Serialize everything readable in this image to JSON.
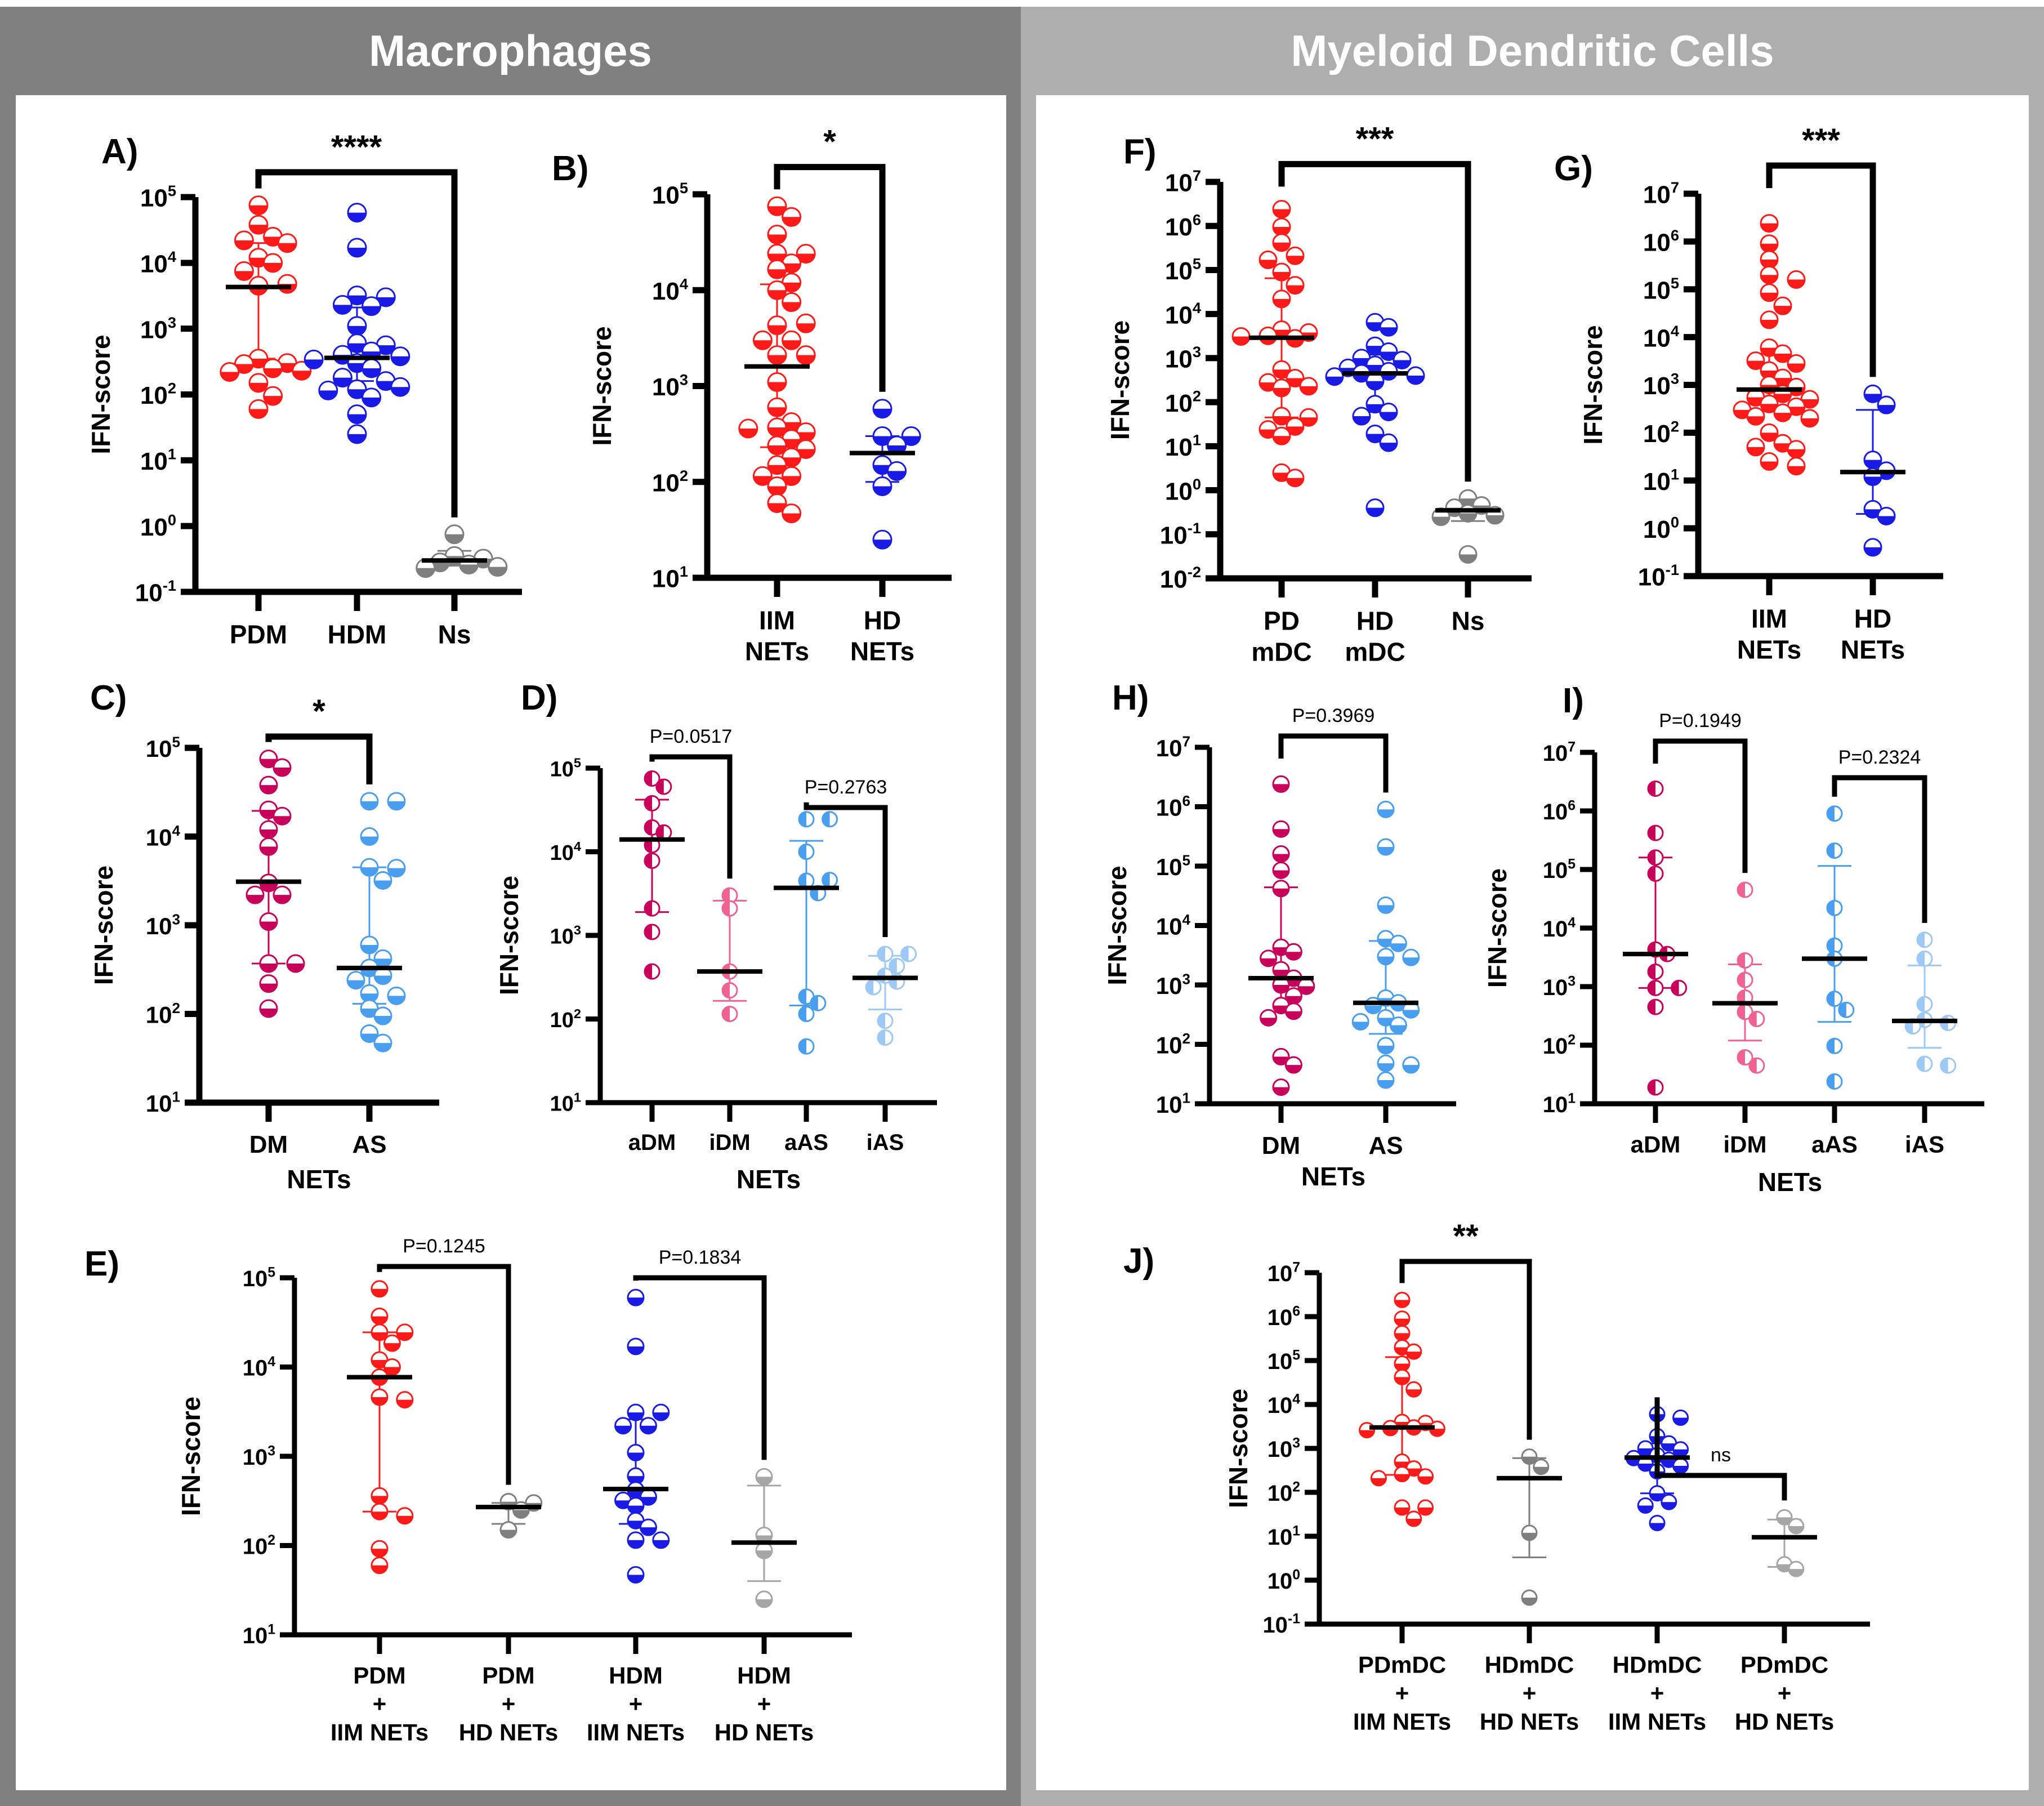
{
  "sections": {
    "left_title": "Macrophages",
    "right_title": "Myeloid Dendritic Cells"
  },
  "colors": {
    "red": "#ff1a1a",
    "blue": "#1a1ae6",
    "gray": "#7f7f7f",
    "lightgray": "#a6a6a6",
    "magenta": "#c8005a",
    "pink": "#f06292",
    "skyblue": "#4a9ef0",
    "paleblue": "#9ec8f5"
  },
  "chart_data": [
    {
      "id": "A",
      "type": "scatter",
      "panel_label": "A)",
      "ylabel": "IFN-score",
      "xlabel": "",
      "yscale": "log",
      "ylim_exp": [
        -1,
        5
      ],
      "categories": [
        "PDM",
        "HDM",
        "Ns"
      ],
      "series": [
        {
          "name": "PDM",
          "color": "red",
          "fill": "bottom",
          "median": 4300,
          "err": [
            350,
            20000
          ],
          "values": [
            75000,
            38000,
            25000,
            22000,
            20000,
            12000,
            10000,
            7500,
            4500,
            4800,
            350,
            300,
            290,
            250,
            220,
            230,
            150,
            95,
            60
          ]
        },
        {
          "name": "HDM",
          "color": "blue",
          "fill": "bottom",
          "median": 360,
          "err": [
            160,
            2100
          ],
          "values": [
            58000,
            17000,
            3200,
            3000,
            2200,
            2300,
            1100,
            600,
            560,
            450,
            400,
            380,
            340,
            300,
            250,
            180,
            160,
            120,
            115,
            130,
            90,
            50,
            25
          ]
        },
        {
          "name": "Ns",
          "color": "gray",
          "fill": "bottom",
          "median": 0.3,
          "err": [
            0.25,
            0.42
          ],
          "values": [
            0.75,
            0.35,
            0.32,
            0.28,
            0.26,
            0.24,
            0.23
          ]
        }
      ],
      "comparisons": [
        {
          "from": 0,
          "to": 2,
          "label": "****"
        }
      ]
    },
    {
      "id": "B",
      "type": "scatter",
      "panel_label": "B)",
      "ylabel": "IFN-score",
      "xlabel": "",
      "yscale": "log",
      "ylim_exp": [
        1,
        5
      ],
      "categories": [
        "IIM|NETs",
        "HD|NETs"
      ],
      "series": [
        {
          "name": "IIM NETs",
          "color": "red",
          "fill": "bottom",
          "median": 1600,
          "err": [
            230,
            11500
          ],
          "values": [
            75000,
            58000,
            38000,
            24000,
            24000,
            19000,
            16500,
            12000,
            10000,
            7500,
            4300,
            4500,
            3000,
            3000,
            2100,
            2100,
            1100,
            600,
            420,
            370,
            330,
            360,
            280,
            240,
            220,
            180,
            150,
            115,
            115,
            90,
            60,
            47
          ]
        },
        {
          "name": "HD NETs",
          "color": "blue",
          "fill": "bottom",
          "median": 200,
          "err": [
            100,
            300
          ],
          "values": [
            580,
            300,
            300,
            240,
            150,
            130,
            90,
            25
          ]
        }
      ],
      "comparisons": [
        {
          "from": 0,
          "to": 1,
          "label": "*"
        }
      ]
    },
    {
      "id": "C",
      "type": "scatter",
      "panel_label": "C)",
      "ylabel": "IFN-score",
      "xlabel": "NETs",
      "yscale": "log",
      "ylim_exp": [
        1,
        5
      ],
      "categories": [
        "DM",
        "AS"
      ],
      "series": [
        {
          "name": "DM",
          "color": "magenta",
          "fill": "bottom",
          "median": 3100,
          "err": [
            370,
            19500
          ],
          "values": [
            75000,
            60000,
            38000,
            20000,
            17000,
            12000,
            7700,
            3000,
            2200,
            2200,
            1100,
            370,
            370,
            220,
            115
          ]
        },
        {
          "name": "AS",
          "color": "skyblue",
          "fill": "bottom",
          "median": 330,
          "err": [
            130,
            4500
          ],
          "values": [
            25000,
            25000,
            10000,
            4500,
            4400,
            3200,
            600,
            420,
            330,
            270,
            240,
            170,
            160,
            115,
            95,
            60,
            47
          ]
        }
      ],
      "comparisons": [
        {
          "from": 0,
          "to": 1,
          "label": "*"
        }
      ]
    },
    {
      "id": "D",
      "type": "scatter",
      "panel_label": "D)",
      "ylabel": "IFN-score",
      "xlabel": "NETs",
      "yscale": "log",
      "ylim_exp": [
        1,
        5
      ],
      "categories": [
        "aDM",
        "iDM",
        "aAS",
        "iAS"
      ],
      "series": [
        {
          "name": "aDM",
          "color": "magenta",
          "fill": "left",
          "median": 14000,
          "err": [
            1900,
            42000
          ],
          "values": [
            75000,
            60000,
            38000,
            19500,
            17000,
            12000,
            7800,
            2100,
            1100,
            370
          ]
        },
        {
          "name": "iDM",
          "color": "pink",
          "fill": "left",
          "median": 370,
          "err": [
            165,
            2600
          ],
          "values": [
            3000,
            2100,
            370,
            220,
            115
          ]
        },
        {
          "name": "aAS",
          "color": "skyblue",
          "fill": "left",
          "median": 3700,
          "err": [
            145,
            13500
          ],
          "values": [
            24500,
            24500,
            10000,
            4500,
            4600,
            3200,
            185,
            155,
            115,
            47
          ]
        },
        {
          "name": "iAS",
          "color": "paleblue",
          "fill": "left",
          "median": 310,
          "err": [
            130,
            570
          ],
          "values": [
            600,
            600,
            430,
            330,
            280,
            240,
            95,
            60
          ]
        }
      ],
      "comparisons": [
        {
          "from": 0,
          "to": 1,
          "label": "P=0.0517"
        },
        {
          "from": 2,
          "to": 3,
          "label": "P=0.2763"
        }
      ]
    },
    {
      "id": "E",
      "type": "scatter",
      "panel_label": "E)",
      "ylabel": "IFN-score",
      "xlabel": "",
      "yscale": "log",
      "ylim_exp": [
        1,
        5
      ],
      "categories": [
        "PDM|+|IIM NETs",
        "PDM|+|HD NETs",
        "HDM|+|IIM NETs",
        "HDM|+|HD NETs"
      ],
      "series": [
        {
          "name": "PDM + IIM NETs",
          "color": "red",
          "fill": "bottom",
          "median": 7700,
          "err": [
            240,
            24500
          ],
          "values": [
            75000,
            37000,
            24500,
            24500,
            18500,
            12000,
            10000,
            7700,
            4600,
            4300,
            360,
            240,
            215,
            92,
            60
          ]
        },
        {
          "name": "PDM + HD NETs",
          "color": "gray",
          "fill": "bottom",
          "median": 270,
          "err": [
            175,
            300
          ],
          "values": [
            310,
            300,
            250,
            150
          ]
        },
        {
          "name": "HDM + IIM NETs",
          "color": "blue",
          "fill": "bottom",
          "median": 430,
          "err": [
            175,
            2600
          ],
          "values": [
            60000,
            17000,
            3100,
            3100,
            2200,
            2200,
            1100,
            600,
            420,
            350,
            320,
            280,
            190,
            160,
            115,
            115,
            47
          ]
        },
        {
          "name": "HDM + HD NETs",
          "color": "lightgray",
          "fill": "bottom",
          "median": 108,
          "err": [
            40,
            470
          ],
          "values": [
            590,
            130,
            88,
            25
          ]
        }
      ],
      "comparisons": [
        {
          "from": 0,
          "to": 1,
          "label": "P=0.1245"
        },
        {
          "from": 2,
          "to": 3,
          "label": "P=0.1834"
        }
      ]
    },
    {
      "id": "F",
      "type": "scatter",
      "panel_label": "F)",
      "ylabel": "IFN-score",
      "xlabel": "",
      "yscale": "log",
      "ylim_exp": [
        -2,
        7
      ],
      "categories": [
        "PD|mDC",
        "HD|mDC",
        "Ns"
      ],
      "series": [
        {
          "name": "PD mDC",
          "color": "red",
          "fill": "bottom",
          "median": 2900,
          "err": [
            45,
            65000
          ],
          "values": [
            2400000,
            950000,
            420000,
            210000,
            170000,
            90000,
            45000,
            22000,
            4400,
            3800,
            3200,
            3100,
            2800,
            550,
            350,
            280,
            230,
            210,
            48,
            45,
            28,
            24,
            17,
            2.5,
            1.9
          ]
        },
        {
          "name": "HD mDC",
          "color": "blue",
          "fill": "bottom",
          "median": 450,
          "err": [
            60,
            1200
          ],
          "values": [
            6500,
            5000,
            1900,
            1400,
            1000,
            900,
            700,
            600,
            500,
            450,
            400,
            380,
            300,
            90,
            60,
            48,
            19,
            12,
            0.4
          ]
        },
        {
          "name": "Ns",
          "color": "gray",
          "fill": "bottom",
          "median": 0.35,
          "err": [
            0.2,
            0.4
          ],
          "values": [
            0.65,
            0.45,
            0.4,
            0.3,
            0.27,
            0.25,
            0.035
          ]
        }
      ],
      "comparisons": [
        {
          "from": 0,
          "to": 2,
          "label": "***"
        }
      ]
    },
    {
      "id": "G",
      "type": "scatter",
      "panel_label": "G)",
      "ylabel": "IFN-score",
      "xlabel": "",
      "yscale": "log",
      "ylim_exp": [
        -1,
        7
      ],
      "categories": [
        "IIM|NETs",
        "HD|NETs"
      ],
      "series": [
        {
          "name": "IIM NETs",
          "color": "red",
          "fill": "bottom",
          "median": 800,
          "err": [
            280,
            4500
          ],
          "values": [
            2400000,
            900000,
            420000,
            200000,
            160000,
            85000,
            45000,
            23000,
            6000,
            4500,
            3200,
            2800,
            2000,
            1400,
            1000,
            900,
            650,
            550,
            500,
            400,
            350,
            300,
            260,
            220,
            200,
            100,
            60,
            50,
            45,
            25,
            20
          ]
        },
        {
          "name": "HD NETs",
          "color": "blue",
          "fill": "bottom",
          "median": 15,
          "err": [
            2,
            300
          ],
          "values": [
            650,
            380,
            27,
            16,
            12,
            2.5,
            1.8,
            0.4
          ]
        }
      ],
      "comparisons": [
        {
          "from": 0,
          "to": 1,
          "label": "***"
        }
      ]
    },
    {
      "id": "H",
      "type": "scatter",
      "panel_label": "H)",
      "ylabel": "IFN-score",
      "xlabel": "NETs",
      "yscale": "log",
      "ylim_exp": [
        1,
        7
      ],
      "categories": [
        "DM",
        "AS"
      ],
      "series": [
        {
          "name": "DM",
          "color": "magenta",
          "fill": "bottom",
          "median": 1300,
          "err": [
            350,
            44000
          ],
          "values": [
            2400000,
            420000,
            160000,
            85000,
            42000,
            4300,
            3600,
            2800,
            1800,
            1300,
            1000,
            950,
            650,
            450,
            360,
            280,
            62,
            45,
            19
          ]
        },
        {
          "name": "AS",
          "color": "skyblue",
          "fill": "bottom",
          "median": 500,
          "err": [
            150,
            5500
          ],
          "values": [
            900000,
            210000,
            22000,
            6000,
            5000,
            3000,
            2900,
            600,
            500,
            450,
            380,
            280,
            240,
            210,
            95,
            48,
            45,
            25
          ]
        }
      ],
      "comparisons": [
        {
          "from": 0,
          "to": 1,
          "label": "P=0.3969"
        }
      ]
    },
    {
      "id": "I",
      "type": "scatter",
      "panel_label": "I)",
      "ylabel": "IFN-score",
      "xlabel": "NETs",
      "yscale": "log",
      "ylim_exp": [
        1,
        7
      ],
      "categories": [
        "aDM",
        "iDM",
        "aAS",
        "iAS"
      ],
      "series": [
        {
          "name": "aDM",
          "color": "magenta",
          "fill": "left",
          "median": 3600,
          "err": [
            950,
            160000
          ],
          "values": [
            2400000,
            420000,
            160000,
            85000,
            4300,
            3600,
            1800,
            950,
            950,
            450,
            19
          ]
        },
        {
          "name": "iDM",
          "color": "pink",
          "fill": "left",
          "median": 520,
          "err": [
            120,
            2400
          ],
          "values": [
            45000,
            2800,
            1300,
            650,
            370,
            280,
            62,
            45
          ]
        },
        {
          "name": "aAS",
          "color": "skyblue",
          "fill": "left",
          "median": 3000,
          "err": [
            250,
            115000
          ],
          "values": [
            900000,
            210000,
            22000,
            5000,
            3000,
            620,
            400,
            97,
            24
          ]
        },
        {
          "name": "iAS",
          "color": "paleblue",
          "fill": "left",
          "median": 260,
          "err": [
            90,
            2300
          ],
          "values": [
            6300,
            3000,
            500,
            270,
            240,
            210,
            48,
            45
          ]
        }
      ],
      "comparisons": [
        {
          "from": 0,
          "to": 1,
          "label": "P=0.1949"
        },
        {
          "from": 2,
          "to": 3,
          "label": "P=0.2324"
        }
      ]
    },
    {
      "id": "J",
      "type": "scatter",
      "panel_label": "J)",
      "ylabel": "IFN-score",
      "xlabel": "",
      "yscale": "log",
      "ylim_exp": [
        -1,
        7
      ],
      "categories": [
        "PDmDC|+|IIM NETs",
        "HDmDC|+|HD NETs",
        "HDmDC|+|IIM NETs",
        "PDmDC|+|HD NETs"
      ],
      "series": [
        {
          "name": "PDmDC + IIM NETs",
          "color": "red",
          "fill": "bottom",
          "median": 3000,
          "err": [
            250,
            120000
          ],
          "values": [
            2400000,
            900000,
            420000,
            200000,
            160000,
            85000,
            42000,
            22000,
            4000,
            3800,
            3000,
            2900,
            2800,
            2600,
            500,
            350,
            260,
            230,
            210,
            45,
            45,
            25
          ]
        },
        {
          "name": "HDmDC + HD NETs",
          "color": "gray",
          "fill": "bottom",
          "median": 210,
          "err": [
            3.3,
            600
          ],
          "values": [
            650,
            380,
            12,
            0.4
          ]
        },
        {
          "name": "HDmDC + IIM NETs",
          "color": "blue",
          "fill": "bottom",
          "median": 620,
          "err": [
            95,
            1300
          ],
          "values": [
            6000,
            5000,
            1900,
            1300,
            1000,
            950,
            700,
            600,
            550,
            450,
            400,
            300,
            95,
            60,
            50,
            20
          ]
        },
        {
          "name": "PDmDC + HD NETs",
          "color": "lightgray",
          "fill": "bottom",
          "median": 9.5,
          "err": [
            2,
            24
          ],
          "values": [
            27,
            17,
            2.3,
            1.8
          ]
        }
      ],
      "comparisons": [
        {
          "from": 0,
          "to": 1,
          "label": "**"
        },
        {
          "from": 2,
          "to": 3,
          "label": "ns"
        }
      ]
    }
  ]
}
